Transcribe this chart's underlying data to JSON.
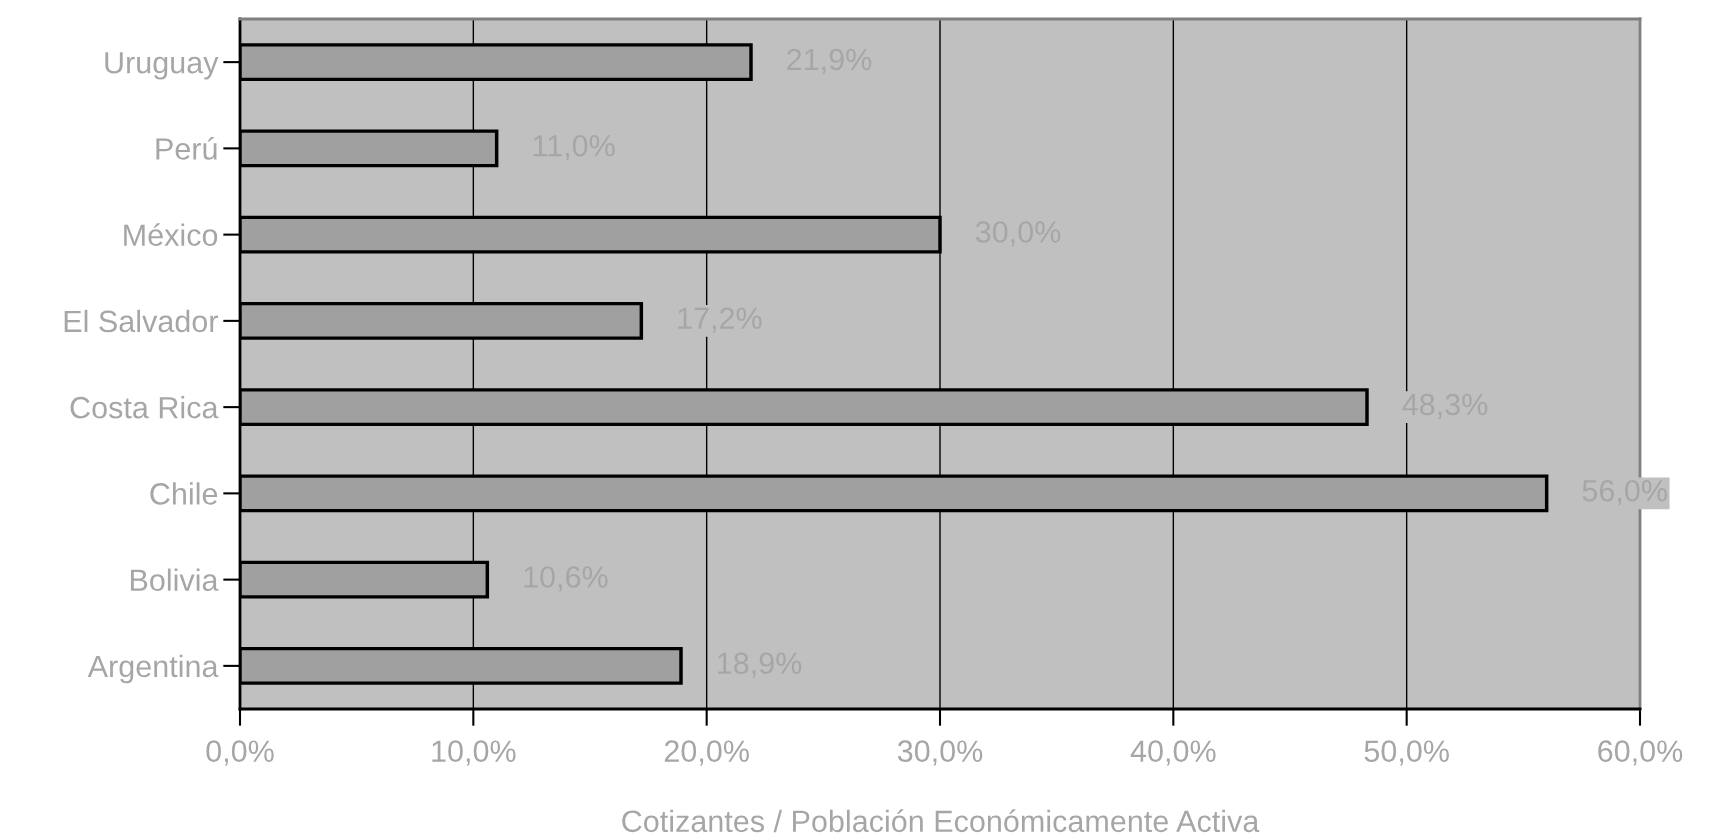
{
  "chart_data": {
    "type": "bar",
    "orientation": "horizontal",
    "xlabel": "Cotizantes / Población Económicamente Activa",
    "categories": [
      "Uruguay",
      "Perú",
      "México",
      "El Salvador",
      "Costa Rica",
      "Chile",
      "Bolivia",
      "Argentina"
    ],
    "values": [
      21.9,
      11.0,
      30.0,
      17.2,
      48.3,
      56.0,
      10.6,
      18.9
    ],
    "value_labels": [
      "21,9%",
      "11,0%",
      "30,0%",
      "17,2%",
      "48,3%",
      "56,0%",
      "10,6%",
      "18,9%"
    ],
    "color": "#a0a0a0",
    "xlim": [
      0,
      60
    ],
    "xticks": [
      {
        "value": 0,
        "label": "0,0%"
      },
      {
        "value": 10,
        "label": "10,0%"
      },
      {
        "value": 20,
        "label": "20,0%"
      },
      {
        "value": 30,
        "label": "30,0%"
      },
      {
        "value": 40,
        "label": "40,0%"
      },
      {
        "value": 50,
        "label": "50,0%"
      },
      {
        "value": 60,
        "label": "60,0%"
      }
    ],
    "grid": "x"
  }
}
